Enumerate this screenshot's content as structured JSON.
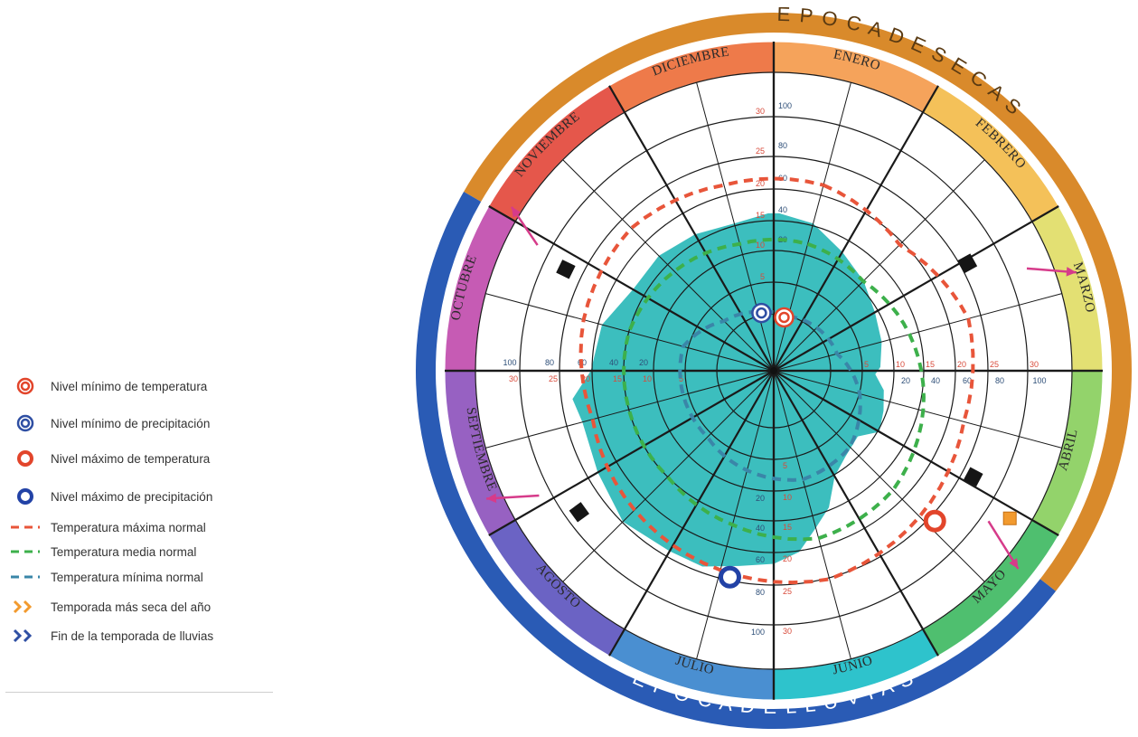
{
  "legend": {
    "items": [
      {
        "label": "Nivel mínimo de temperatura",
        "symbol": "double-circle",
        "color": "#e2452b"
      },
      {
        "label": "Nivel mínimo de precipitación",
        "symbol": "double-circle",
        "color": "#2f4fa3"
      },
      {
        "label": "Nivel máximo de temperatura",
        "symbol": "ring",
        "color": "#e2452b"
      },
      {
        "label": "Nivel máximo de precipitación",
        "symbol": "ring",
        "color": "#2242a6"
      },
      {
        "label": "Temperatura máxima normal",
        "symbol": "dash",
        "color": "#e8553a"
      },
      {
        "label": "Temperatura media normal",
        "symbol": "dash",
        "color": "#3db04b"
      },
      {
        "label": "Temperatura mínima normal",
        "symbol": "dash",
        "color": "#3a86a8"
      },
      {
        "label": "Temporada más seca del año",
        "symbol": "chevrons",
        "color": "#f29a2e"
      },
      {
        "label": "Fin de la temporada de lluvias",
        "symbol": "chevrons",
        "color": "#2f4fa3"
      }
    ]
  },
  "chart_data": {
    "type": "radial",
    "seasons": [
      {
        "label": "EPOCA DE SECAS",
        "color": "#d98a2b"
      },
      {
        "label": "EPOCA DE LLUVIAS",
        "color": "#2a5bb5"
      }
    ],
    "months": [
      {
        "label": "ENERO",
        "color": "#f5a35b"
      },
      {
        "label": "FEBRERO",
        "color": "#f4c159"
      },
      {
        "label": "MARZO",
        "color": "#e3e073"
      },
      {
        "label": "ABRIL",
        "color": "#93d36b"
      },
      {
        "label": "MAYO",
        "color": "#4fbf6f"
      },
      {
        "label": "JUNIO",
        "color": "#2ec3cc"
      },
      {
        "label": "JULIO",
        "color": "#4a8fd1"
      },
      {
        "label": "AGOSTO",
        "color": "#6b63c4"
      },
      {
        "label": "SEPTIEMBRE",
        "color": "#9761c2"
      },
      {
        "label": "OCTUBRE",
        "color": "#c65bb4"
      },
      {
        "label": "NOVIEMBRE",
        "color": "#e5574b"
      },
      {
        "label": "DICIEMBRE",
        "color": "#ee7a4a"
      }
    ],
    "temperature_ticks": [
      "5",
      "10",
      "15",
      "20",
      "25",
      "30"
    ],
    "precipitation_ticks": [
      "20",
      "40",
      "60",
      "80",
      "100"
    ],
    "rose_fill_color": "#2bb9b8",
    "precipitation_rose": [
      {
        "angle": 2,
        "value": 62
      },
      {
        "angle": 15,
        "value": 60
      },
      {
        "angle": 30,
        "value": 54
      },
      {
        "angle": 45,
        "value": 50
      },
      {
        "angle": 60,
        "value": 46
      },
      {
        "angle": 75,
        "value": 44
      },
      {
        "angle": 88,
        "value": 42
      },
      {
        "angle": 92,
        "value": 40
      },
      {
        "angle": 100,
        "value": 44
      },
      {
        "angle": 110,
        "value": 46
      },
      {
        "angle": 120,
        "value": 48
      },
      {
        "angle": 128,
        "value": 42
      },
      {
        "angle": 140,
        "value": 44
      },
      {
        "angle": 150,
        "value": 48
      },
      {
        "angle": 158,
        "value": 58
      },
      {
        "angle": 165,
        "value": 64
      },
      {
        "angle": 172,
        "value": 72
      },
      {
        "angle": 180,
        "value": 76
      },
      {
        "angle": 190,
        "value": 78
      },
      {
        "angle": 200,
        "value": 82
      },
      {
        "angle": 210,
        "value": 82
      },
      {
        "angle": 225,
        "value": 84
      },
      {
        "angle": 240,
        "value": 80
      },
      {
        "angle": 255,
        "value": 78
      },
      {
        "angle": 262,
        "value": 80
      },
      {
        "angle": 270,
        "value": 72
      },
      {
        "angle": 285,
        "value": 70
      },
      {
        "angle": 300,
        "value": 64
      },
      {
        "angle": 315,
        "value": 64
      },
      {
        "angle": 330,
        "value": 62
      },
      {
        "angle": 345,
        "value": 60
      },
      {
        "angle": 358,
        "value": 62
      }
    ],
    "series": [
      {
        "name": "Temperatura máxima normal",
        "color": "#e8553a",
        "values": [
          20.5,
          19,
          21.5,
          21,
          22,
          23,
          22,
          21,
          20,
          21,
          21.5,
          20.5
        ]
      },
      {
        "name": "Temperatura media normal",
        "color": "#3db04b",
        "values": [
          14,
          13.5,
          15,
          16.5,
          18,
          18.5,
          17,
          16,
          16,
          16,
          15,
          14
        ]
      },
      {
        "name": "Temperatura mínima normal",
        "color": "#3a86a8",
        "values": [
          6,
          6.5,
          7,
          9.5,
          11.5,
          12,
          11,
          10,
          10,
          10,
          7.5,
          6.5
        ]
      }
    ],
    "markers": [
      {
        "type": "min-temperature",
        "angle": 11,
        "value": 5.8
      },
      {
        "type": "min-precipitation",
        "angle": 348,
        "value": 6.3
      },
      {
        "type": "max-temperature",
        "angle": 133,
        "value": 23.5
      },
      {
        "type": "max-precipitation",
        "angle": 192,
        "value": 22.5
      }
    ]
  }
}
